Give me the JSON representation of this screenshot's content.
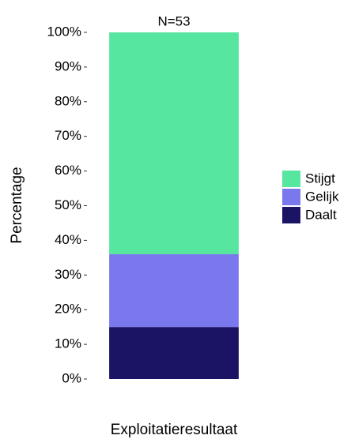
{
  "chart_data": {
    "type": "stacked_bar",
    "title": "N=53",
    "x_label": "Exploitatieresultaat",
    "y_label": "Percentage",
    "categories": [
      null
    ],
    "series": [
      {
        "name": "Daalt",
        "color": "#1b1464",
        "values": [
          15
        ]
      },
      {
        "name": "Gelijk",
        "color": "#7b78ee",
        "values": [
          21
        ]
      },
      {
        "name": "Stijgt",
        "color": "#57e6a0",
        "values": [
          64
        ]
      }
    ],
    "ylim": [
      0,
      100
    ],
    "yticks": [
      {
        "value": 0,
        "label": "0%"
      },
      {
        "value": 10,
        "label": "10%"
      },
      {
        "value": 20,
        "label": "20%"
      },
      {
        "value": 30,
        "label": "30%"
      },
      {
        "value": 40,
        "label": "40%"
      },
      {
        "value": 50,
        "label": "50%"
      },
      {
        "value": 60,
        "label": "60%"
      },
      {
        "value": 70,
        "label": "70%"
      },
      {
        "value": 80,
        "label": "80%"
      },
      {
        "value": 90,
        "label": "90%"
      },
      {
        "value": 100,
        "label": "100%"
      }
    ],
    "legend": "right",
    "grid": false
  }
}
